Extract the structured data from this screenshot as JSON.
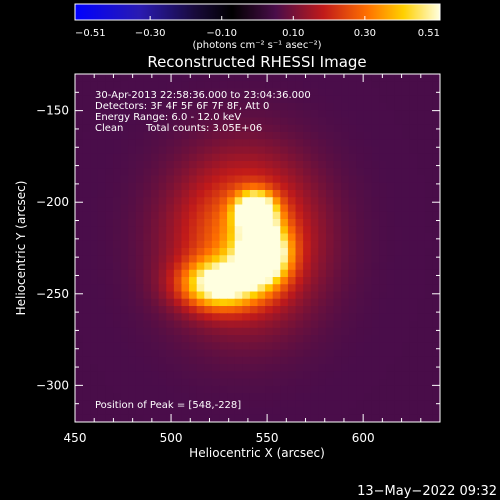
{
  "chart_data": {
    "type": "heatmap",
    "title": "Reconstructed RHESSI Image",
    "xlabel": "Heliocentric X (arcsec)",
    "ylabel": "Heliocentric Y (arcsec)",
    "xlim": [
      450,
      640
    ],
    "ylim": [
      -320,
      -130
    ],
    "x_ticks": [
      450,
      500,
      550,
      600
    ],
    "x_tick_labels": [
      "450",
      "500",
      "550",
      "600"
    ],
    "y_ticks": [
      -150,
      -200,
      -250,
      -300
    ],
    "y_tick_labels": [
      "−150",
      "−200",
      "−250",
      "−300"
    ],
    "colorbar": {
      "min": -0.51,
      "max": 0.51,
      "tick_values": [
        -0.51,
        -0.3,
        -0.1,
        0.1,
        0.3,
        0.51
      ],
      "tick_labels": [
        "−0.51",
        "−0.30",
        "−0.10",
        "0.10",
        "0.30",
        "0.51"
      ],
      "unit_label": "(photons cm⁻² s⁻¹ asec⁻²)",
      "colormap": "blue-black-red-yellow-white"
    },
    "annotations": {
      "time_range": "30-Apr-2013 22:58:36.000 to 23:04:36.000",
      "detectors": "Detectors: 3F 4F 5F 6F 7F 8F, Att 0",
      "energy_range": "Energy Range: 6.0 - 12.0 keV",
      "algorithm": "Clean",
      "total_counts": "Total counts: 3.05E+06",
      "peak_position": "Position of Peak = [548,-228]"
    },
    "sources": [
      {
        "x": 544,
        "y": -205,
        "peak": 0.51,
        "sigma_x": 7,
        "sigma_y": 7
      },
      {
        "x": 548,
        "y": -228,
        "peak": 0.51,
        "sigma_x": 9,
        "sigma_y": 11
      },
      {
        "x": 525,
        "y": -245,
        "peak": 0.4,
        "sigma_x": 14,
        "sigma_y": 9
      },
      {
        "x": 538,
        "y": -220,
        "peak": 0.28,
        "sigma_x": 25,
        "sigma_y": 30
      }
    ],
    "background_level": 0.05
  },
  "footer": {
    "timestamp": "13−May−2022 09:32"
  },
  "colors": {
    "background": "#000000",
    "text": "#ffffff"
  }
}
